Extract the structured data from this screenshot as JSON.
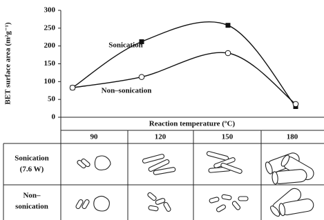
{
  "chart_data": {
    "type": "line",
    "x_label": "Reaction temperature (ºC)",
    "y_label": "BET surface area (m²g⁻¹)",
    "categories": [
      "90",
      "120",
      "150",
      "180"
    ],
    "series": [
      {
        "name": "Sonication",
        "color": "#111111",
        "marker": "filled-square",
        "values": [
          83,
          212,
          258,
          30
        ]
      },
      {
        "name": "Non–sonication",
        "color": "#111111",
        "marker": "open-circle",
        "values": [
          83,
          113,
          180,
          37
        ]
      }
    ],
    "ylim": [
      0,
      300
    ],
    "yticks": [
      0,
      50,
      100,
      150,
      200,
      250,
      300
    ],
    "grid": false
  },
  "table": {
    "row_labels": [
      [
        "Sonication",
        "(7.6 W)"
      ],
      [
        "Non–",
        "sonication"
      ]
    ]
  }
}
